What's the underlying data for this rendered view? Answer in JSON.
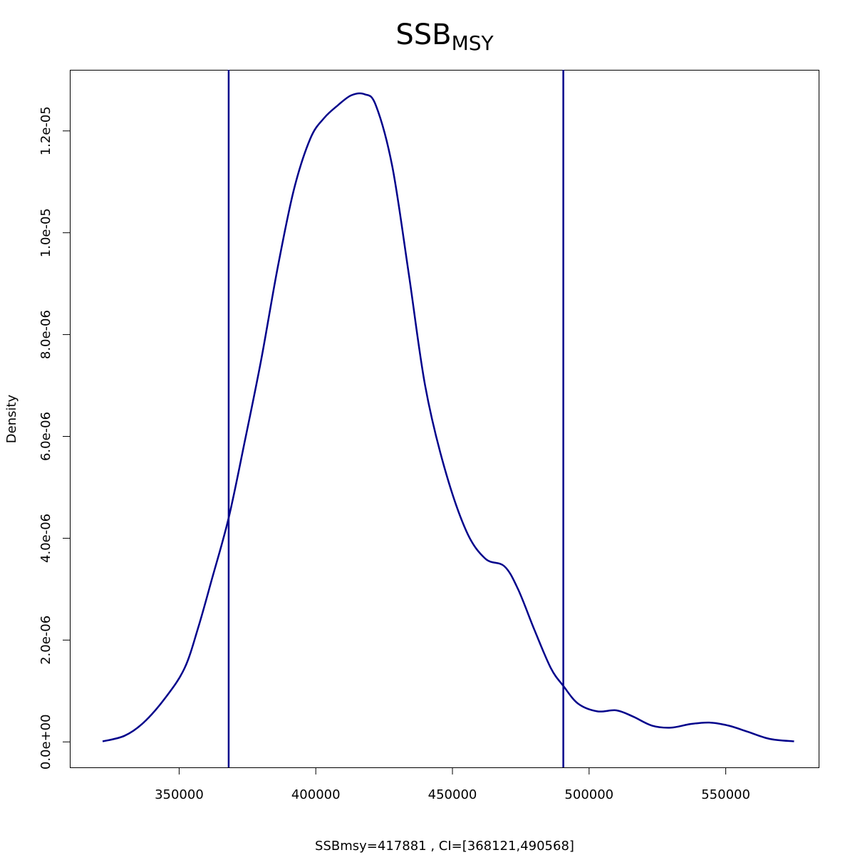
{
  "chart_data": {
    "type": "line",
    "title": {
      "main": "SSB",
      "subscript": "MSY"
    },
    "xlabel": "SSBmsy=417881 , CI=[368121,490568]",
    "ylabel": "Density",
    "xlim": [
      310000,
      584000
    ],
    "ylim": [
      -5e-07,
      1.32e-05
    ],
    "x_ticks": [
      350000,
      400000,
      450000,
      500000,
      550000
    ],
    "x_tick_labels": [
      "350000",
      "400000",
      "450000",
      "500000",
      "550000"
    ],
    "y_ticks": [
      0,
      2e-06,
      4e-06,
      6e-06,
      8e-06,
      1e-05,
      1.2e-05
    ],
    "y_tick_labels": [
      "0.0e+00",
      "2.0e-06",
      "4.0e-06",
      "6.0e-06",
      "8.0e-06",
      "1.0e-05",
      "1.2e-05"
    ],
    "line_color": "#00008B",
    "series": [
      {
        "name": "density",
        "x": [
          322000,
          330000,
          337000,
          345000,
          352000,
          357000,
          362000,
          368121,
          374000,
          380000,
          386000,
          392000,
          398000,
          403000,
          408000,
          413000,
          417881,
          422000,
          428000,
          434000,
          440000,
          447000,
          455000,
          462000,
          469000,
          474000,
          480000,
          486000,
          490568,
          496000,
          503000,
          510000,
          516000,
          523000,
          530000,
          537000,
          544000,
          551000,
          558000,
          566000,
          575000
        ],
        "y": [
          1e-08,
          1.2e-07,
          3.8e-07,
          8.7e-07,
          1.45e-06,
          2.25e-06,
          3.2e-06,
          4.4e-06,
          5.9e-06,
          7.5e-06,
          9.3e-06,
          1.085e-05,
          1.185e-05,
          1.225e-05,
          1.25e-05,
          1.27e-05,
          1.272e-05,
          1.25e-05,
          1.13e-05,
          9.2e-06,
          7e-06,
          5.4e-06,
          4.15e-06,
          3.6e-06,
          3.45e-06,
          3e-06,
          2.2e-06,
          1.45e-06,
          1.1e-06,
          7.5e-07,
          6e-07,
          6.2e-07,
          5e-07,
          3.2e-07,
          2.8e-07,
          3.5e-07,
          3.8e-07,
          3.2e-07,
          2e-07,
          6e-08,
          1e-08
        ]
      }
    ],
    "vlines": [
      {
        "name": "ci-lower",
        "x": 368121
      },
      {
        "name": "ci-upper",
        "x": 490568
      }
    ]
  }
}
